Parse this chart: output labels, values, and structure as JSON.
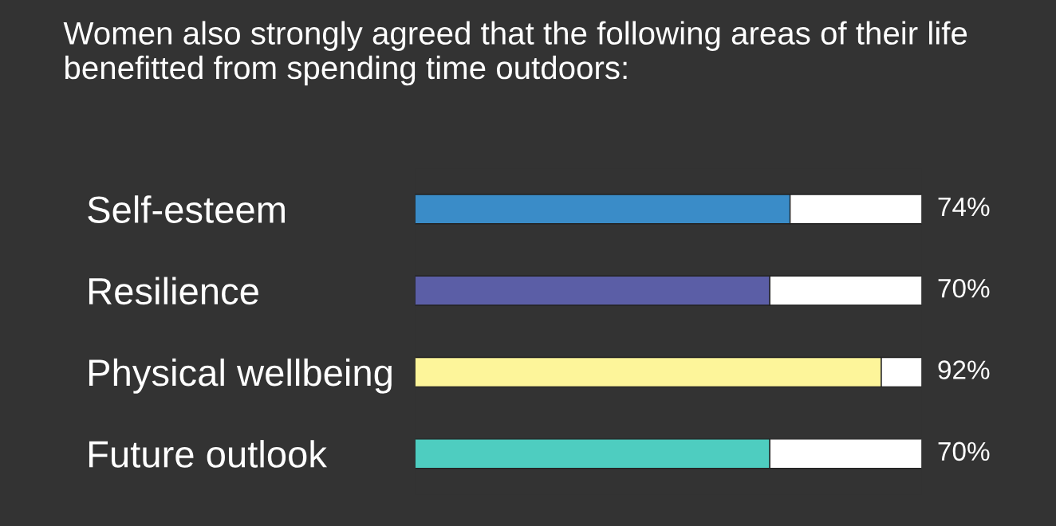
{
  "chart_data": {
    "type": "bar",
    "orientation": "horizontal",
    "stacked": true,
    "title": "Women also strongly agreed that the following areas of their life benefitted from spending time outdoors:",
    "categories": [
      "Self-esteem",
      "Resilience",
      "Physical wellbeing",
      "Future outlook"
    ],
    "series": [
      {
        "colors": [
          "#3a8cc8",
          "#5b5ea6",
          "#fdf59a",
          "#4ecdc0"
        ],
        "values": [
          74,
          70,
          92,
          70
        ],
        "value_labels": [
          "74%",
          "70%",
          "92%",
          "70%"
        ]
      },
      {
        "color": "#ffffff",
        "values": [
          26,
          30,
          8,
          30
        ]
      }
    ],
    "xlim": [
      0,
      100
    ],
    "tick_labels": "y",
    "grid": false,
    "legend": false
  }
}
